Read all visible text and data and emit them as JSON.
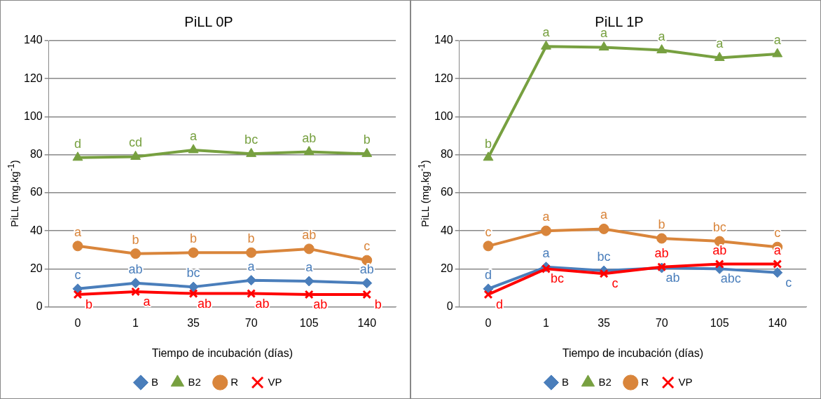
{
  "chart_data": [
    {
      "type": "line",
      "title": "PiLL 0P",
      "xlabel": "Tiempo de incubación (días)",
      "ylabel": "PiLL (mg.kg$^{-1}$)",
      "categories": [
        "0",
        "1",
        "35",
        "70",
        "105",
        "140"
      ],
      "series": [
        {
          "name": "B",
          "color": "#4a7ebb",
          "marker": "diamond",
          "values": [
            9.5,
            12.5,
            10.5,
            14,
            13.5,
            12.5
          ]
        },
        {
          "name": "B2",
          "color": "#77a040",
          "marker": "triangle",
          "values": [
            78.5,
            79,
            82.5,
            80.5,
            81.5,
            80.5
          ]
        },
        {
          "name": "R",
          "color": "#d9853b",
          "marker": "circle",
          "values": [
            32,
            28,
            28.5,
            28.5,
            30.5,
            24.5
          ]
        },
        {
          "name": "VP",
          "color": "#ff0000",
          "marker": "cross",
          "values": [
            6.5,
            8,
            7,
            7,
            6.5,
            6.5
          ]
        }
      ],
      "ylim": [
        0,
        140
      ],
      "yticks": [
        0,
        20,
        40,
        60,
        80,
        100,
        120,
        140
      ],
      "grid": "y",
      "legend": "bottom",
      "annotations": [
        {
          "text": "c",
          "x": "0",
          "y": 9.5
        },
        {
          "text": "ab",
          "x": "1",
          "y": 12.5
        },
        {
          "text": "bc",
          "x": "35",
          "y": 10.5
        },
        {
          "text": "a",
          "x": "70",
          "y": 14
        },
        {
          "text": "a",
          "x": "105",
          "y": 13.5
        },
        {
          "text": "ab",
          "x": "140",
          "y": 12.5
        },
        {
          "text": "d",
          "x": "0",
          "y": 78.5
        },
        {
          "text": "cd",
          "x": "1",
          "y": 79
        },
        {
          "text": "a",
          "x": "35",
          "y": 82.5
        },
        {
          "text": "bc",
          "x": "70",
          "y": 80.5
        },
        {
          "text": "ab",
          "x": "105",
          "y": 81.5
        },
        {
          "text": "b",
          "x": "140",
          "y": 80.5
        },
        {
          "text": "a",
          "x": "0",
          "y": 32
        },
        {
          "text": "b",
          "x": "1",
          "y": 28
        },
        {
          "text": "b",
          "x": "35",
          "y": 28.5
        },
        {
          "text": "b",
          "x": "70",
          "y": 28.5
        },
        {
          "text": "ab",
          "x": "105",
          "y": 30.5
        },
        {
          "text": "c",
          "x": "140",
          "y": 24.5
        },
        {
          "text": "b",
          "x": "0",
          "y": 6.5
        },
        {
          "text": "a",
          "x": "1",
          "y": 8
        },
        {
          "text": "ab",
          "x": "35",
          "y": 7
        },
        {
          "text": "ab",
          "x": "70",
          "y": 7
        },
        {
          "text": "ab",
          "x": "105",
          "y": 6.5
        },
        {
          "text": "b",
          "x": "140",
          "y": 6.5
        }
      ]
    },
    {
      "type": "line",
      "title": "PiLL 1P",
      "xlabel": "Tiempo de incubación (días)",
      "ylabel": "PiLL (mg.kg$^{-1}$)",
      "categories": [
        "0",
        "1",
        "35",
        "70",
        "105",
        "140"
      ],
      "series": [
        {
          "name": "B",
          "color": "#4a7ebb",
          "marker": "diamond",
          "values": [
            9.5,
            21,
            19,
            20.5,
            20,
            18
          ]
        },
        {
          "name": "B2",
          "color": "#77a040",
          "marker": "triangle",
          "values": [
            78.5,
            137,
            136.5,
            135,
            131,
            133
          ]
        },
        {
          "name": "R",
          "color": "#d9853b",
          "marker": "circle",
          "values": [
            32,
            40,
            41,
            36,
            34.5,
            31.5
          ]
        },
        {
          "name": "VP",
          "color": "#ff0000",
          "marker": "cross",
          "values": [
            6.5,
            20,
            17.5,
            21,
            22.5,
            22.5
          ]
        }
      ],
      "ylim": [
        0,
        140
      ],
      "yticks": [
        0,
        20,
        40,
        60,
        80,
        100,
        120,
        140
      ],
      "grid": "y",
      "legend": "bottom",
      "annotations": [
        {
          "text": "d",
          "x": "0",
          "y": 9.5
        },
        {
          "text": "a",
          "x": "1",
          "y": 21
        },
        {
          "text": "bc",
          "x": "35",
          "y": 19
        },
        {
          "text": "ab",
          "x": "70",
          "y": 20.5
        },
        {
          "text": "abc",
          "x": "105",
          "y": 20
        },
        {
          "text": "c",
          "x": "140",
          "y": 18
        },
        {
          "text": "b",
          "x": "0",
          "y": 78.5
        },
        {
          "text": "a",
          "x": "1",
          "y": 137
        },
        {
          "text": "a",
          "x": "35",
          "y": 136.5
        },
        {
          "text": "a",
          "x": "70",
          "y": 135
        },
        {
          "text": "a",
          "x": "105",
          "y": 131
        },
        {
          "text": "a",
          "x": "140",
          "y": 133
        },
        {
          "text": "c",
          "x": "0",
          "y": 32
        },
        {
          "text": "a",
          "x": "1",
          "y": 40
        },
        {
          "text": "a",
          "x": "35",
          "y": 41
        },
        {
          "text": "b",
          "x": "70",
          "y": 36
        },
        {
          "text": "bc",
          "x": "105",
          "y": 34.5
        },
        {
          "text": "c",
          "x": "140",
          "y": 31.5
        },
        {
          "text": "d",
          "x": "0",
          "y": 6.5
        },
        {
          "text": "bc",
          "x": "1",
          "y": 20
        },
        {
          "text": "c",
          "x": "35",
          "y": 17.5
        },
        {
          "text": "ab",
          "x": "70",
          "y": 21
        },
        {
          "text": "ab",
          "x": "105",
          "y": 22.5
        },
        {
          "text": "a",
          "x": "140",
          "y": 22.5
        }
      ]
    }
  ]
}
